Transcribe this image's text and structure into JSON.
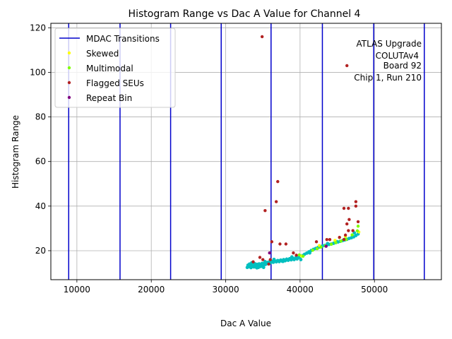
{
  "chart_data": {
    "type": "scatter",
    "title": "Histogram Range vs Dac A Value for Channel 4",
    "xlabel": "Dac A Value",
    "ylabel": "Histogram Range",
    "xlim": [
      6500,
      59000
    ],
    "ylim": [
      7,
      122
    ],
    "xticks": [
      10000,
      20000,
      30000,
      40000,
      50000
    ],
    "yticks": [
      20,
      40,
      60,
      80,
      100,
      120
    ],
    "grid": true,
    "legend_position": "top-left",
    "annotation": [
      "ATLAS Upgrade",
      "COLUTAv4",
      "Board 92",
      "Chip 1, Run 210"
    ],
    "annotation_position": "top-right",
    "colors": {
      "mdac": "#0000cc",
      "normal": "#00bfbf",
      "skewed": "#ffff00",
      "multimodal": "#7fff00",
      "flagged": "#b22222",
      "repeat": "#800080",
      "grid": "#b0b0b0"
    },
    "mdac_transitions": [
      8900,
      15800,
      22600,
      29400,
      36100,
      43000,
      49900,
      56700
    ],
    "series": [
      {
        "name": "MDAC Transitions",
        "kind": "vline",
        "color": "#0000cc",
        "x": [
          8900,
          15800,
          22600,
          29400,
          36100,
          43000,
          49900,
          56700
        ]
      },
      {
        "name": "",
        "kind": "normal",
        "color": "#00bfbf",
        "x": [
          32900,
          33000,
          33100,
          33200,
          33300,
          33400,
          33500,
          33600,
          33700,
          33800,
          33900,
          34000,
          34100,
          34200,
          34300,
          34400,
          34500,
          34600,
          34700,
          34800,
          34900,
          35000,
          35100,
          35200,
          35300,
          35400,
          35500,
          35600,
          35700,
          35800,
          35900,
          36000,
          36200,
          36400,
          36600,
          36800,
          37000,
          37200,
          37400,
          37600,
          37800,
          38000,
          38200,
          38400,
          38600,
          38800,
          39000,
          39200,
          39400,
          39600,
          39800,
          40000,
          40300,
          40600,
          40900,
          41200,
          41500,
          41800,
          42100,
          42400,
          42700,
          43000,
          43300,
          43600,
          43900,
          44200,
          44500,
          44800,
          45100,
          45400,
          45700,
          46000,
          46300,
          46600,
          46900,
          47200,
          47500,
          47800,
          33500,
          34200,
          35300,
          36500,
          37700,
          38900,
          40100,
          41300,
          42500,
          43700,
          44900,
          46100,
          47300
        ],
        "y": [
          12.5,
          13.5,
          12.8,
          14.0,
          13.0,
          12.4,
          13.8,
          12.9,
          13.6,
          12.7,
          14.2,
          13.1,
          12.6,
          13.9,
          13.3,
          12.5,
          14.1,
          13.4,
          12.9,
          13.7,
          14.3,
          13.0,
          12.5,
          14.4,
          13.8,
          14.0,
          14.6,
          14.2,
          14.8,
          14.1,
          15.0,
          14.5,
          15.2,
          14.8,
          15.4,
          15.0,
          15.6,
          15.1,
          15.8,
          15.3,
          16.0,
          15.5,
          16.2,
          15.7,
          16.4,
          15.9,
          16.6,
          16.0,
          16.8,
          16.3,
          17.0,
          17.2,
          17.8,
          18.4,
          18.9,
          19.5,
          20.1,
          20.6,
          21.0,
          21.4,
          21.8,
          22.1,
          22.3,
          22.6,
          22.8,
          23.0,
          23.3,
          23.6,
          23.9,
          24.2,
          24.5,
          24.8,
          25.1,
          25.5,
          25.8,
          26.2,
          26.8,
          27.5,
          14.6,
          12.3,
          15.1,
          16.1,
          15.2,
          17.2,
          16.0,
          19.0,
          21.5,
          23.2,
          24.1,
          25.3,
          28.0
        ],
        "marker": "circle"
      },
      {
        "name": "Skewed",
        "kind": "skewed",
        "color": "#ffff00",
        "x": [
          40200,
          42600,
          44700,
          45300,
          46100,
          47900
        ],
        "y": [
          17.6,
          22.3,
          24.6,
          25.9,
          26.4,
          28.4
        ],
        "marker": "circle"
      },
      {
        "name": "Multimodal",
        "kind": "multimodal",
        "color": "#7fff00",
        "x": [
          39900,
          40400,
          41700,
          42300,
          42800,
          43400,
          44200,
          44800,
          45500,
          46200,
          47000,
          47700,
          47800
        ],
        "y": [
          18.1,
          17.5,
          20.2,
          20.9,
          21.6,
          22.2,
          22.9,
          23.6,
          24.3,
          25.0,
          27.1,
          28.9,
          31.0
        ],
        "marker": "circle"
      },
      {
        "name": "Flagged SEUs",
        "kind": "flagged",
        "color": "#b22222",
        "x": [
          34900,
          46300,
          37000,
          36800,
          35300,
          45900,
          46500,
          47500,
          46600,
          47500,
          47800,
          46300,
          46500,
          47100,
          36200,
          37300,
          38100,
          42200,
          44000,
          43600,
          45300,
          45900,
          46100,
          34600,
          35000,
          36000,
          33700,
          39100,
          39500,
          35800
        ],
        "y": [
          116,
          103,
          51,
          42,
          38,
          39,
          39,
          42,
          34,
          40,
          33,
          32,
          29,
          29,
          24,
          23,
          23,
          24,
          25,
          25,
          26,
          25,
          27,
          17,
          16,
          16,
          15,
          19,
          18,
          14
        ],
        "marker": "circle"
      },
      {
        "name": "Repeat Bin",
        "kind": "repeat",
        "color": "#800080",
        "x": [
          35900,
          43500
        ],
        "y": [
          19,
          22
        ],
        "marker": "circle"
      }
    ]
  }
}
